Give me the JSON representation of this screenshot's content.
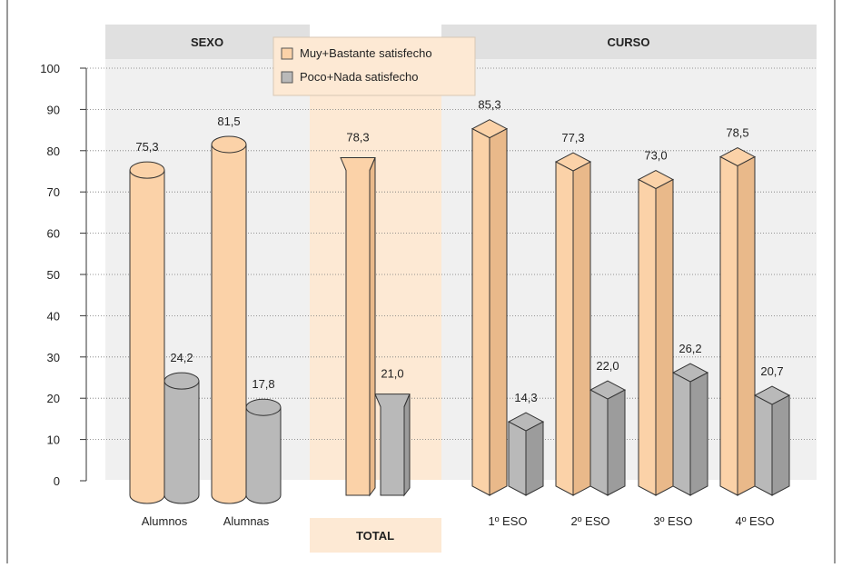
{
  "chart_data": {
    "type": "bar",
    "groups": [
      {
        "label": "SEXO",
        "categories": [
          0,
          1
        ]
      },
      {
        "label": "TOTAL",
        "categories": [
          2
        ]
      },
      {
        "label": "CURSO",
        "categories": [
          3,
          4,
          5,
          6
        ]
      }
    ],
    "categories": [
      "Alumnos",
      "Alumnas",
      "",
      "1º ESO",
      "2º ESO",
      "3º ESO",
      "4º ESO"
    ],
    "series": [
      {
        "name": "Muy+Bastante satisfecho",
        "values": [
          75.3,
          81.5,
          78.3,
          85.3,
          77.3,
          73.0,
          78.5
        ],
        "labels": [
          "75,3",
          "81,5",
          "78,3",
          "85,3",
          "77,3",
          "73,0",
          "78,5"
        ]
      },
      {
        "name": "Poco+Nada satisfecho",
        "values": [
          24.2,
          17.8,
          21.0,
          14.3,
          22.0,
          26.2,
          20.7
        ],
        "labels": [
          "24,2",
          "17,8",
          "21,0",
          "14,3",
          "22,0",
          "26,2",
          "20,7"
        ]
      }
    ],
    "yticks": [
      "0",
      "10",
      "20",
      "30",
      "40",
      "50",
      "60",
      "70",
      "80",
      "90",
      "100"
    ],
    "ylim": [
      0,
      100
    ],
    "grid": true,
    "legend": "top-center",
    "colors": {
      "series1": "#fbd2a8",
      "series2": "#b9b9b9",
      "panel": "#f0f0f0",
      "header": "#e0e0e0",
      "total_band": "#fde9d4"
    }
  }
}
